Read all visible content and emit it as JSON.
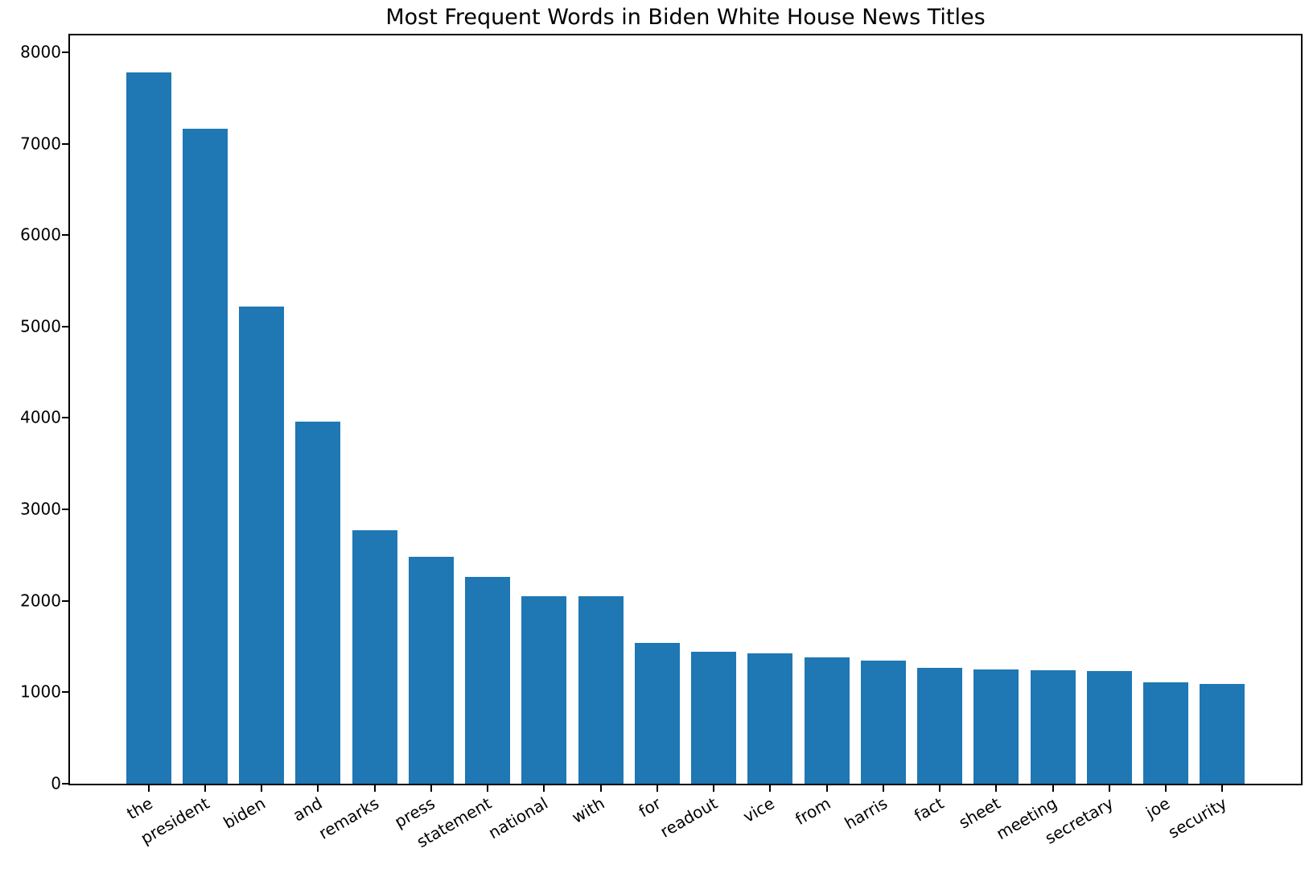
{
  "figure": {
    "background_color": "#ffffff",
    "text_color": "#000000"
  },
  "chart_data": {
    "type": "bar",
    "title": "Most Frequent Words in Biden White House News Titles",
    "categories": [
      "the",
      "president",
      "biden",
      "and",
      "remarks",
      "press",
      "statement",
      "national",
      "with",
      "for",
      "readout",
      "vice",
      "from",
      "harris",
      "fact",
      "sheet",
      "meeting",
      "secretary",
      "joe",
      "security"
    ],
    "values": [
      7780,
      7160,
      5220,
      3960,
      2770,
      2480,
      2260,
      2050,
      2050,
      1540,
      1440,
      1430,
      1380,
      1350,
      1265,
      1250,
      1240,
      1230,
      1110,
      1090
    ],
    "xlabel": "",
    "ylabel": "",
    "yticks": [
      0,
      1000,
      2000,
      3000,
      4000,
      5000,
      6000,
      7000,
      8000
    ],
    "ylim": [
      0,
      8184
    ],
    "bar_color": "#1f77b4",
    "bar_width_fraction": 0.8,
    "x_tick_rotation_deg": 30,
    "grid": false,
    "legend": null
  }
}
